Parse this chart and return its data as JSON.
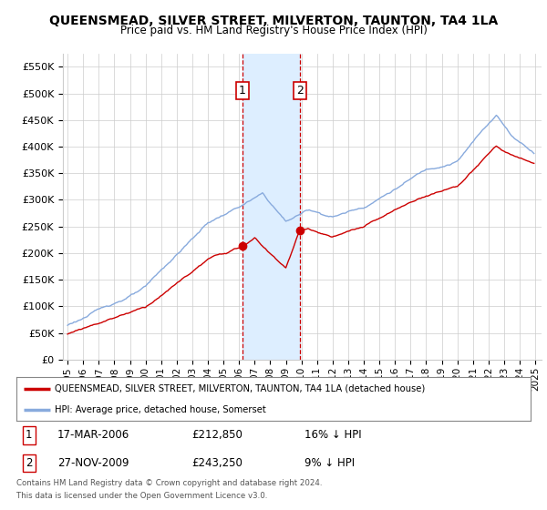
{
  "title": "QUEENSMEAD, SILVER STREET, MILVERTON, TAUNTON, TA4 1LA",
  "subtitle": "Price paid vs. HM Land Registry's House Price Index (HPI)",
  "legend_line1": "QUEENSMEAD, SILVER STREET, MILVERTON, TAUNTON, TA4 1LA (detached house)",
  "legend_line2": "HPI: Average price, detached house, Somerset",
  "sale1_date": "17-MAR-2006",
  "sale1_price": "£212,850",
  "sale1_hpi": "16% ↓ HPI",
  "sale1_year": 2006.21,
  "sale1_value": 212850,
  "sale2_date": "27-NOV-2009",
  "sale2_price": "£243,250",
  "sale2_hpi": "9% ↓ HPI",
  "sale2_year": 2009.9,
  "sale2_value": 243250,
  "footnote1": "Contains HM Land Registry data © Crown copyright and database right 2024.",
  "footnote2": "This data is licensed under the Open Government Licence v3.0.",
  "line_color_red": "#cc0000",
  "line_color_blue": "#88aadd",
  "shade_color": "#ddeeff",
  "grid_color": "#cccccc",
  "bg_color": "#ffffff",
  "ylim": [
    0,
    575000
  ],
  "yticks": [
    0,
    50000,
    100000,
    150000,
    200000,
    250000,
    300000,
    350000,
    400000,
    450000,
    500000,
    550000
  ],
  "ytick_labels": [
    "£0",
    "£50K",
    "£100K",
    "£150K",
    "£200K",
    "£250K",
    "£300K",
    "£350K",
    "£400K",
    "£450K",
    "£500K",
    "£550K"
  ]
}
